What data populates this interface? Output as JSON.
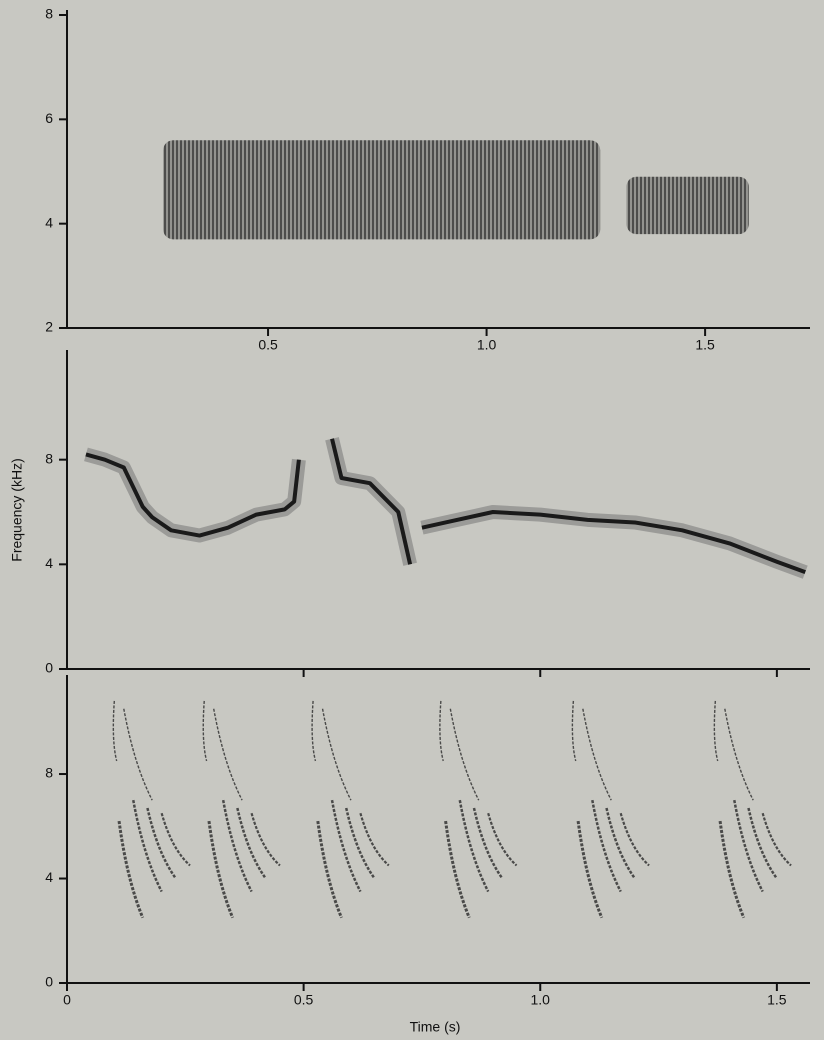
{
  "chart_data": [
    {
      "type": "segments",
      "xlim": [
        0.04,
        1.74
      ],
      "ylim": [
        2,
        8
      ],
      "yticks": [
        2,
        4,
        6,
        8
      ],
      "xticks": [
        0.5,
        {
          "value": 1,
          "label": "1.0"
        },
        1.5
      ],
      "segments": [
        {
          "start": 0.26,
          "end": 1.26,
          "low": 3.7,
          "high": 5.6
        },
        {
          "start": 1.32,
          "end": 1.6,
          "low": 3.8,
          "high": 4.9
        }
      ]
    },
    {
      "type": "line",
      "xlim": [
        0,
        1.57
      ],
      "ylim": [
        0,
        12
      ],
      "yticks": [
        0,
        4,
        8
      ],
      "x": [
        0.04,
        0.08,
        0.12,
        0.16,
        0.18,
        0.22,
        0.28,
        0.34,
        0.4,
        0.46,
        0.48,
        0.49,
        null,
        0.56,
        0.58,
        0.64,
        0.7,
        0.725,
        null,
        0.75,
        0.8,
        0.9,
        1.0,
        1.1,
        1.2,
        1.3,
        1.4,
        1.5,
        1.56
      ],
      "values": [
        8.2,
        8.0,
        7.7,
        6.2,
        5.8,
        5.3,
        5.1,
        5.4,
        5.9,
        6.1,
        6.4,
        8.0,
        null,
        8.8,
        7.3,
        7.1,
        6.0,
        4.0,
        null,
        5.4,
        5.6,
        6.0,
        5.9,
        5.7,
        5.6,
        5.3,
        4.8,
        4.1,
        3.7
      ],
      "y_label": "Frequency (kHz)"
    },
    {
      "type": "notes",
      "xlim": [
        0,
        1.57
      ],
      "ylim": [
        0,
        11.6
      ],
      "yticks": [
        0,
        4,
        8
      ],
      "xticks": [
        0,
        0.5,
        {
          "value": 1,
          "label": "1.0"
        },
        1.5
      ],
      "onsets": [
        0.1,
        0.29,
        0.52,
        0.79,
        1.07,
        1.37
      ],
      "x_label": "Time (s)"
    }
  ]
}
